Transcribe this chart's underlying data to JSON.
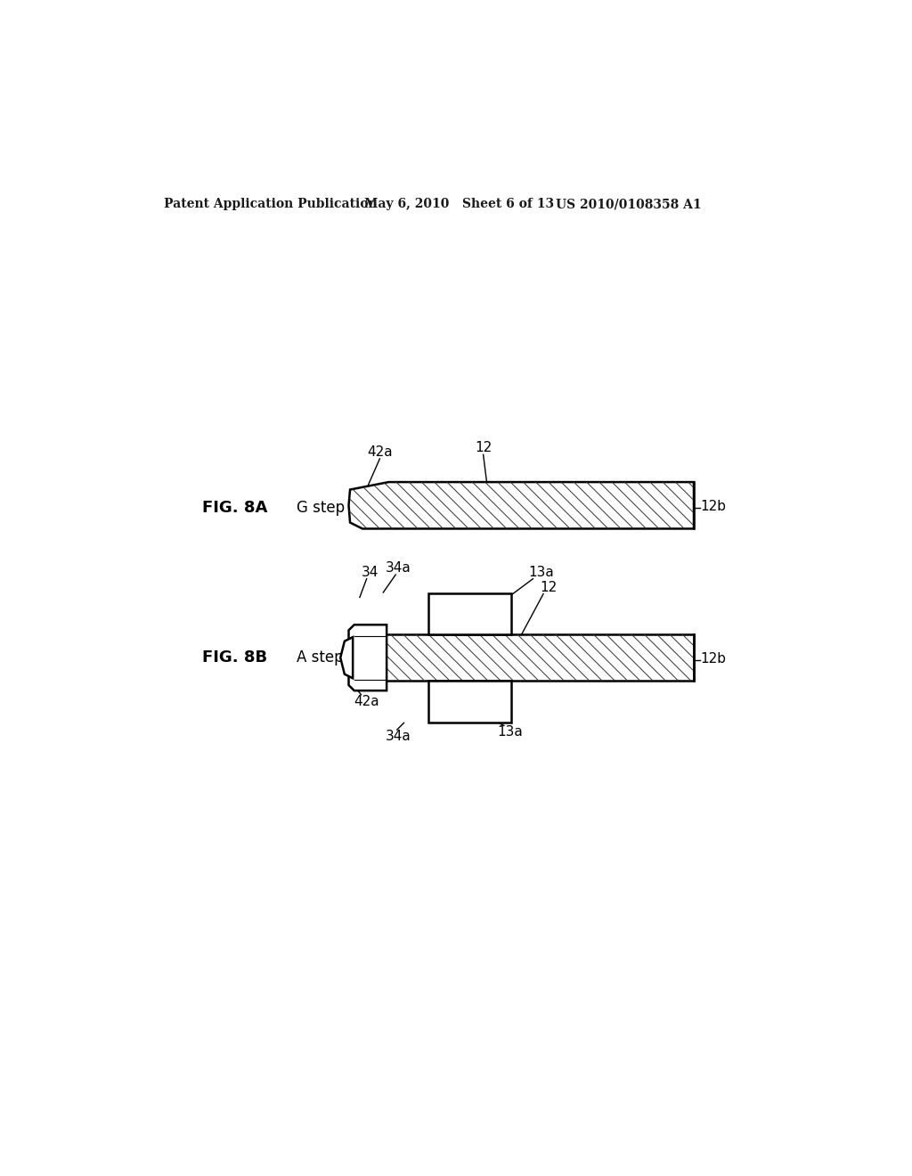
{
  "bg_color": "#ffffff",
  "header_text1": "Patent Application Publication",
  "header_text2": "May 6, 2010   Sheet 6 of 13",
  "header_text3": "US 2010/0108358 A1",
  "fig8a_label": "FIG. 8A",
  "fig8b_label": "FIG. 8B",
  "step_g": "G step",
  "step_a": "A step",
  "label_12_8a": "12",
  "label_12b_8a": "12b",
  "label_42a_8a": "42a",
  "label_34_8b": "34",
  "label_34a_8b": "34a",
  "label_13a_8b_top": "13a",
  "label_12_8b": "12",
  "label_12b_8b": "12b",
  "label_42a_8b": "42a",
  "label_34a_8b_bot": "34a",
  "label_13a_8b_bot": "13a"
}
